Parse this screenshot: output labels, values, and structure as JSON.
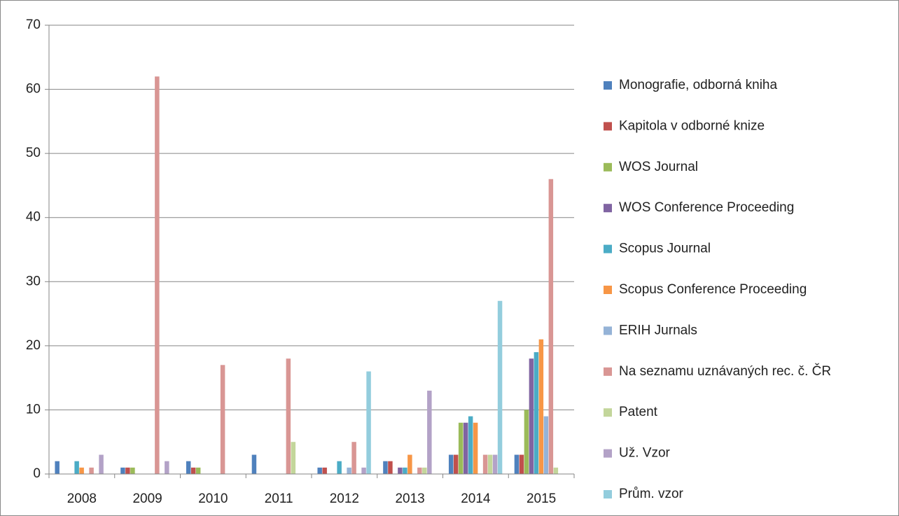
{
  "chart_data": {
    "type": "bar",
    "categories": [
      "2008",
      "2009",
      "2010",
      "2011",
      "2012",
      "2013",
      "2014",
      "2015"
    ],
    "series": [
      {
        "name": "Monografie, odborná kniha",
        "color": "#4f81bd",
        "values": [
          2,
          1,
          2,
          3,
          1,
          2,
          3,
          3
        ]
      },
      {
        "name": "Kapitola v odborné knize",
        "color": "#c0504d",
        "values": [
          0,
          1,
          1,
          0,
          1,
          2,
          3,
          3
        ]
      },
      {
        "name": "WOS Journal",
        "color": "#9bbb59",
        "values": [
          0,
          1,
          1,
          0,
          0,
          0,
          8,
          10
        ]
      },
      {
        "name": "WOS Conference Proceeding",
        "color": "#8064a2",
        "values": [
          0,
          0,
          0,
          0,
          0,
          1,
          8,
          18
        ]
      },
      {
        "name": "Scopus Journal",
        "color": "#4bacc6",
        "values": [
          2,
          0,
          0,
          0,
          2,
          1,
          9,
          19
        ]
      },
      {
        "name": "Scopus Conference Proceeding",
        "color": "#f79646",
        "values": [
          1,
          0,
          0,
          0,
          0,
          3,
          8,
          21
        ]
      },
      {
        "name": "ERIH Jurnals",
        "color": "#95b3d7",
        "values": [
          0,
          0,
          0,
          0,
          1,
          0,
          0,
          9
        ]
      },
      {
        "name": "Na seznamu uznávaných rec. č. ČR",
        "color": "#d99694",
        "values": [
          1,
          62,
          17,
          18,
          5,
          1,
          3,
          46
        ]
      },
      {
        "name": "Patent",
        "color": "#c3d69b",
        "values": [
          0,
          0,
          0,
          5,
          0,
          1,
          3,
          1
        ]
      },
      {
        "name": "Už. Vzor",
        "color": "#b3a2c7",
        "values": [
          3,
          2,
          0,
          0,
          1,
          13,
          3,
          0
        ]
      },
      {
        "name": "Prům. vzor",
        "color": "#93cddd",
        "values": [
          0,
          0,
          0,
          0,
          16,
          0,
          27,
          0
        ]
      }
    ],
    "ylim": [
      0,
      70
    ],
    "yticks": [
      0,
      10,
      20,
      30,
      40,
      50,
      60,
      70
    ],
    "grid": true
  }
}
